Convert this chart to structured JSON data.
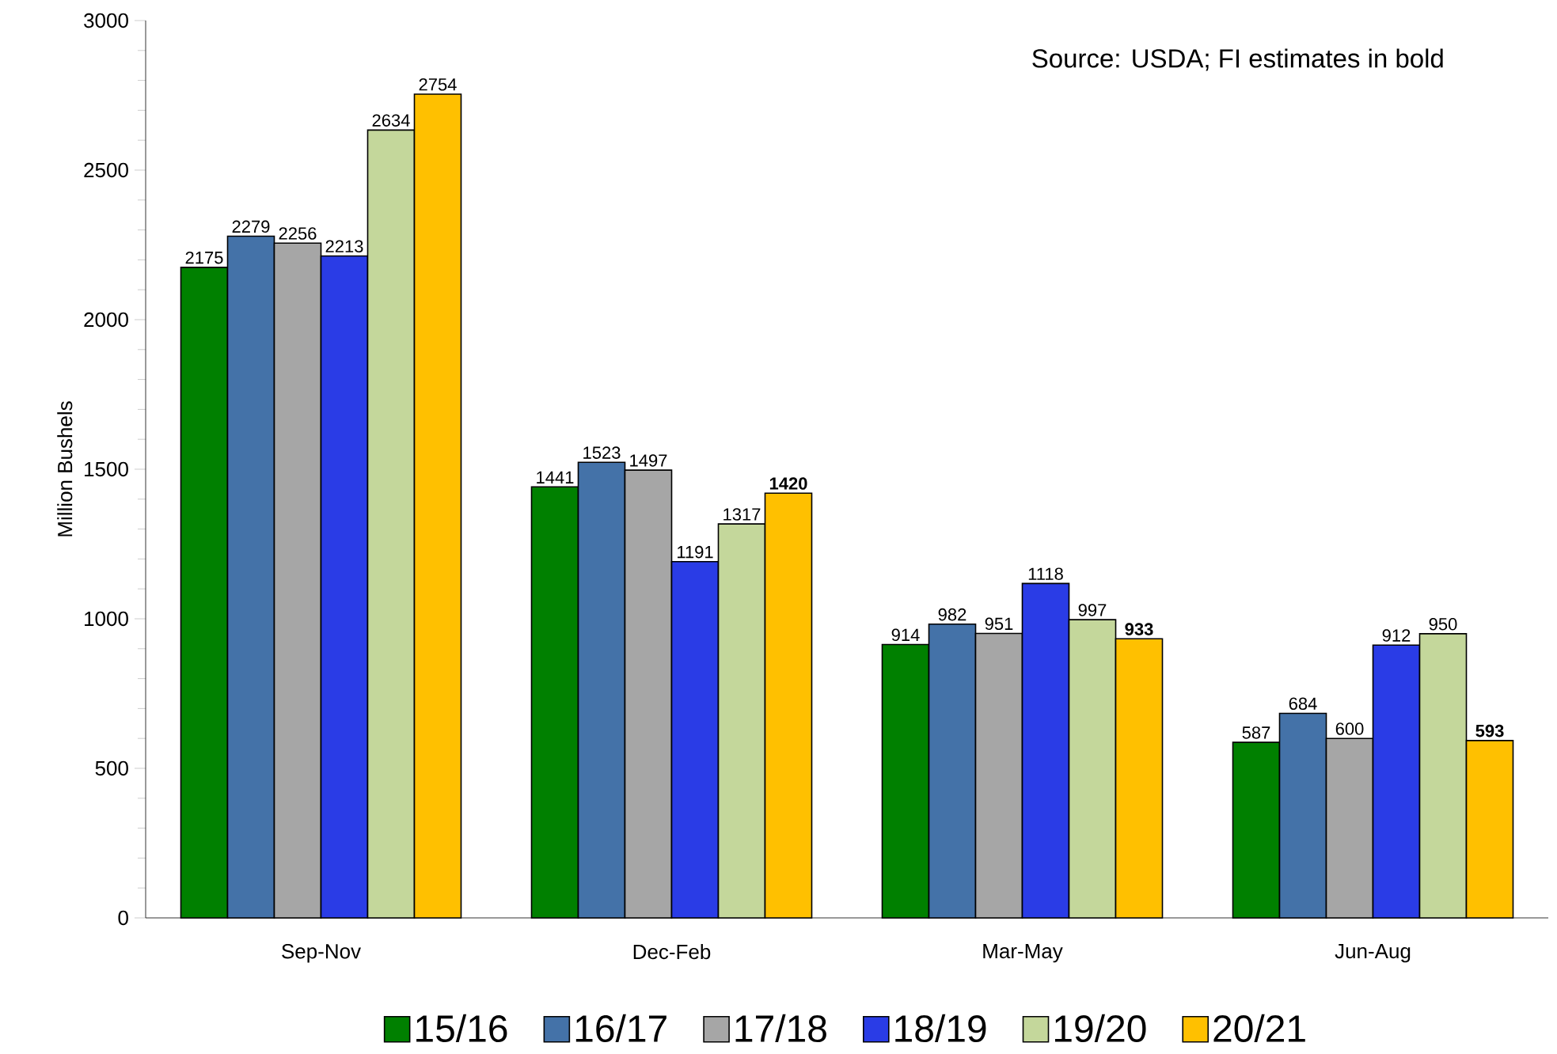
{
  "chart_data": {
    "type": "bar",
    "ylabel": "Million Bushels",
    "annotations": [
      "Source: USDA; FI estimates in bold"
    ],
    "categories": [
      "Sep-Nov",
      "Dec-Feb",
      "Mar-May",
      "Jun-Aug"
    ],
    "series": [
      {
        "name": "15/16",
        "color": "#008000",
        "values": [
          2175,
          1441,
          914,
          587
        ],
        "value_labels": [
          "2175",
          "1441",
          "914",
          "587"
        ]
      },
      {
        "name": "16/17",
        "color": "#4472a8",
        "values": [
          2279,
          1523,
          982,
          684
        ],
        "value_labels": [
          "2279",
          "1523",
          "982",
          "684"
        ]
      },
      {
        "name": "17/18",
        "color": "#a6a6a6",
        "values": [
          2256,
          1497,
          951,
          600
        ],
        "value_labels": [
          "2256",
          "1497",
          "951",
          "600"
        ]
      },
      {
        "name": "18/19",
        "color": "#2a3ce6",
        "values": [
          2213,
          1191,
          1118,
          912
        ],
        "value_labels": [
          "2213",
          "1191",
          "1118",
          "912"
        ]
      },
      {
        "name": "19/20",
        "color": "#c4d79b",
        "values": [
          2634,
          1317,
          997,
          950
        ],
        "value_labels": [
          "2634",
          "1317",
          "997",
          "950"
        ]
      },
      {
        "name": "20/21",
        "color": "#ffc000",
        "values": [
          2754,
          1420,
          933,
          593
        ],
        "value_labels": [
          "2754",
          "**1420**",
          "**933**",
          "**593**"
        ]
      }
    ],
    "ylim": [
      0,
      3000
    ],
    "yticks": [
      0,
      500,
      1000,
      1500,
      2000,
      2500,
      3000
    ],
    "legend": "bottom"
  }
}
